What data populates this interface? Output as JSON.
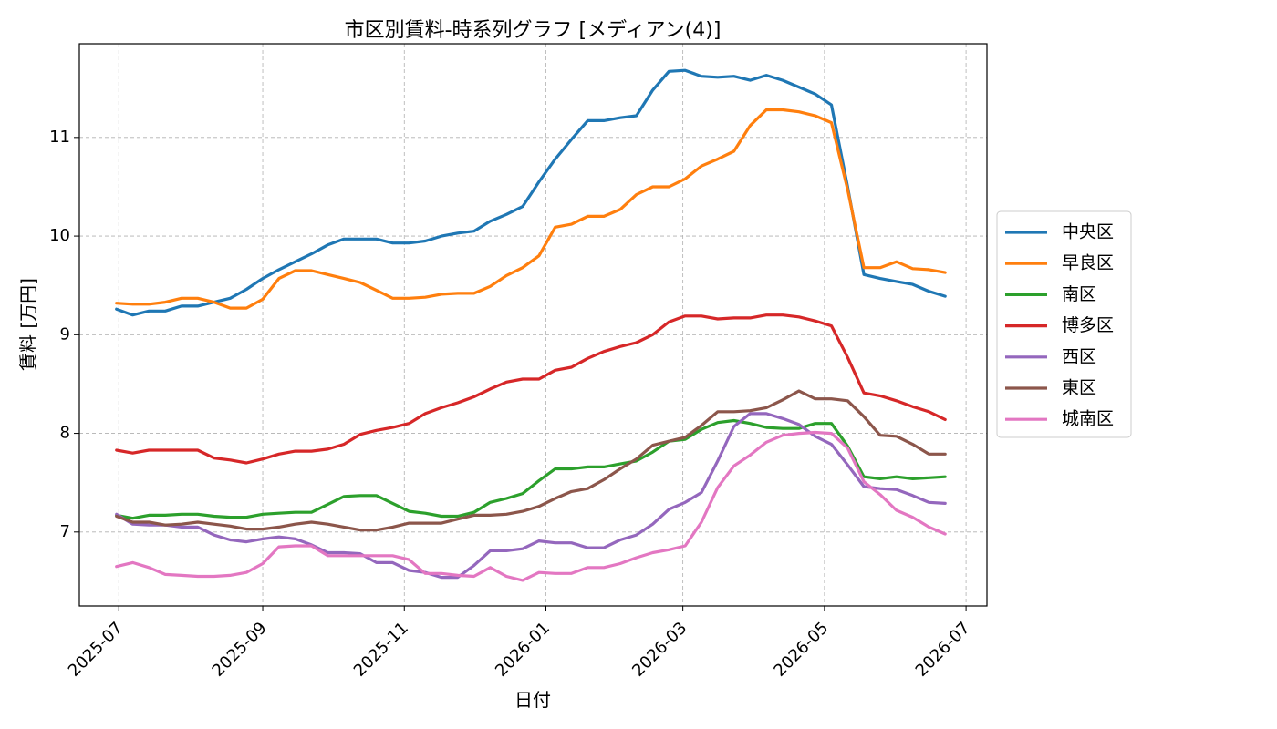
{
  "chart_data": {
    "type": "line",
    "title": "市区別賃料-時系列グラフ [メディアン(4)]",
    "xlabel": "日付",
    "ylabel": "賃料 [万円]",
    "x_ticks": [
      "2025-07",
      "2025-09",
      "2025-11",
      "2026-01",
      "2026-03",
      "2026-05",
      "2026-07"
    ],
    "y_ticks": [
      7,
      8,
      9,
      10,
      11
    ],
    "xlim": [
      "2025-06-14",
      "2026-07-10"
    ],
    "ylim": [
      6.25,
      11.95
    ],
    "grid": true,
    "legend_position": "center-right",
    "x": [
      "2025-06-30",
      "2025-07-07",
      "2025-07-14",
      "2025-07-21",
      "2025-07-28",
      "2025-08-04",
      "2025-08-11",
      "2025-08-18",
      "2025-08-25",
      "2025-09-01",
      "2025-09-08",
      "2025-09-15",
      "2025-09-22",
      "2025-09-29",
      "2025-10-06",
      "2025-10-13",
      "2025-10-20",
      "2025-10-27",
      "2025-11-03",
      "2025-11-10",
      "2025-11-17",
      "2025-11-24",
      "2025-12-01",
      "2025-12-08",
      "2025-12-15",
      "2025-12-22",
      "2025-12-29",
      "2026-01-05",
      "2026-01-12",
      "2026-01-19",
      "2026-01-26",
      "2026-02-02",
      "2026-02-09",
      "2026-02-16",
      "2026-02-23",
      "2026-03-02",
      "2026-03-09",
      "2026-03-16",
      "2026-03-23",
      "2026-03-30",
      "2026-04-06",
      "2026-04-13",
      "2026-04-20",
      "2026-04-27",
      "2026-05-04",
      "2026-05-11",
      "2026-05-18",
      "2026-05-25",
      "2026-06-01",
      "2026-06-08",
      "2026-06-15",
      "2026-06-22"
    ],
    "series": [
      {
        "name": "中央区",
        "color": "#1f77b4",
        "values": [
          9.26,
          9.2,
          9.24,
          9.24,
          9.29,
          9.29,
          9.33,
          9.37,
          9.46,
          9.57,
          9.66,
          9.74,
          9.82,
          9.91,
          9.97,
          9.97,
          9.97,
          9.93,
          9.93,
          9.95,
          10.0,
          10.03,
          10.05,
          10.15,
          10.22,
          10.3,
          10.55,
          10.78,
          10.98,
          11.17,
          11.17,
          11.2,
          11.22,
          11.48,
          11.67,
          11.68,
          11.62,
          11.61,
          11.62,
          11.58,
          11.63,
          11.58,
          11.51,
          11.44,
          11.33,
          10.5,
          9.61,
          9.57,
          9.54,
          9.51,
          9.44,
          9.39
        ]
      },
      {
        "name": "早良区",
        "color": "#ff7f0e",
        "values": [
          9.32,
          9.31,
          9.31,
          9.33,
          9.37,
          9.37,
          9.33,
          9.27,
          9.27,
          9.36,
          9.57,
          9.65,
          9.65,
          9.61,
          9.57,
          9.53,
          9.45,
          9.37,
          9.37,
          9.38,
          9.41,
          9.42,
          9.42,
          9.49,
          9.6,
          9.68,
          9.8,
          10.09,
          10.12,
          10.2,
          10.2,
          10.27,
          10.42,
          10.5,
          10.5,
          10.58,
          10.71,
          10.78,
          10.86,
          11.12,
          11.28,
          11.28,
          11.26,
          11.22,
          11.15,
          10.47,
          9.68,
          9.68,
          9.74,
          9.67,
          9.66,
          9.63
        ]
      },
      {
        "name": "南区",
        "color": "#2ca02c",
        "values": [
          7.17,
          7.14,
          7.17,
          7.17,
          7.18,
          7.18,
          7.16,
          7.15,
          7.15,
          7.18,
          7.19,
          7.2,
          7.2,
          7.28,
          7.36,
          7.37,
          7.37,
          7.29,
          7.21,
          7.19,
          7.16,
          7.16,
          7.2,
          7.3,
          7.34,
          7.39,
          7.52,
          7.64,
          7.64,
          7.66,
          7.66,
          7.69,
          7.72,
          7.81,
          7.92,
          7.94,
          8.04,
          8.11,
          8.13,
          8.1,
          8.06,
          8.05,
          8.05,
          8.1,
          8.1,
          7.87,
          7.56,
          7.54,
          7.56,
          7.54,
          7.55,
          7.56
        ]
      },
      {
        "name": "博多区",
        "color": "#d62728",
        "values": [
          7.83,
          7.8,
          7.83,
          7.83,
          7.83,
          7.83,
          7.75,
          7.73,
          7.7,
          7.74,
          7.79,
          7.82,
          7.82,
          7.84,
          7.89,
          7.99,
          8.03,
          8.06,
          8.1,
          8.2,
          8.26,
          8.31,
          8.37,
          8.45,
          8.52,
          8.55,
          8.55,
          8.64,
          8.67,
          8.76,
          8.83,
          8.88,
          8.92,
          9.0,
          9.13,
          9.19,
          9.19,
          9.16,
          9.17,
          9.17,
          9.2,
          9.2,
          9.18,
          9.14,
          9.09,
          8.77,
          8.41,
          8.38,
          8.33,
          8.27,
          8.22,
          8.14
        ]
      },
      {
        "name": "西区",
        "color": "#9467bd",
        "values": [
          7.18,
          7.08,
          7.07,
          7.07,
          7.05,
          7.05,
          6.97,
          6.92,
          6.9,
          6.93,
          6.95,
          6.93,
          6.87,
          6.79,
          6.79,
          6.78,
          6.69,
          6.69,
          6.61,
          6.59,
          6.54,
          6.54,
          6.66,
          6.81,
          6.81,
          6.83,
          6.91,
          6.89,
          6.89,
          6.84,
          6.84,
          6.92,
          6.97,
          7.08,
          7.23,
          7.3,
          7.4,
          7.72,
          8.07,
          8.2,
          8.2,
          8.15,
          8.09,
          7.97,
          7.89,
          7.68,
          7.46,
          7.44,
          7.43,
          7.37,
          7.3,
          7.29
        ]
      },
      {
        "name": "東区",
        "color": "#8c564b",
        "values": [
          7.16,
          7.1,
          7.1,
          7.07,
          7.08,
          7.1,
          7.08,
          7.06,
          7.03,
          7.03,
          7.05,
          7.08,
          7.1,
          7.08,
          7.05,
          7.02,
          7.02,
          7.05,
          7.09,
          7.09,
          7.09,
          7.13,
          7.17,
          7.17,
          7.18,
          7.21,
          7.26,
          7.34,
          7.41,
          7.44,
          7.53,
          7.64,
          7.74,
          7.88,
          7.92,
          7.96,
          8.08,
          8.22,
          8.22,
          8.23,
          8.26,
          8.34,
          8.43,
          8.35,
          8.35,
          8.33,
          8.17,
          7.98,
          7.97,
          7.89,
          7.79,
          7.79
        ]
      },
      {
        "name": "城南区",
        "color": "#e377c2",
        "values": [
          6.65,
          6.69,
          6.64,
          6.57,
          6.56,
          6.55,
          6.55,
          6.56,
          6.59,
          6.68,
          6.85,
          6.86,
          6.86,
          6.76,
          6.76,
          6.76,
          6.76,
          6.76,
          6.72,
          6.58,
          6.58,
          6.56,
          6.55,
          6.64,
          6.55,
          6.51,
          6.59,
          6.58,
          6.58,
          6.64,
          6.64,
          6.68,
          6.74,
          6.79,
          6.82,
          6.86,
          7.1,
          7.45,
          7.67,
          7.78,
          7.91,
          7.98,
          8.0,
          8.01,
          8.0,
          7.85,
          7.51,
          7.38,
          7.22,
          7.15,
          7.05,
          6.98
        ]
      }
    ]
  }
}
